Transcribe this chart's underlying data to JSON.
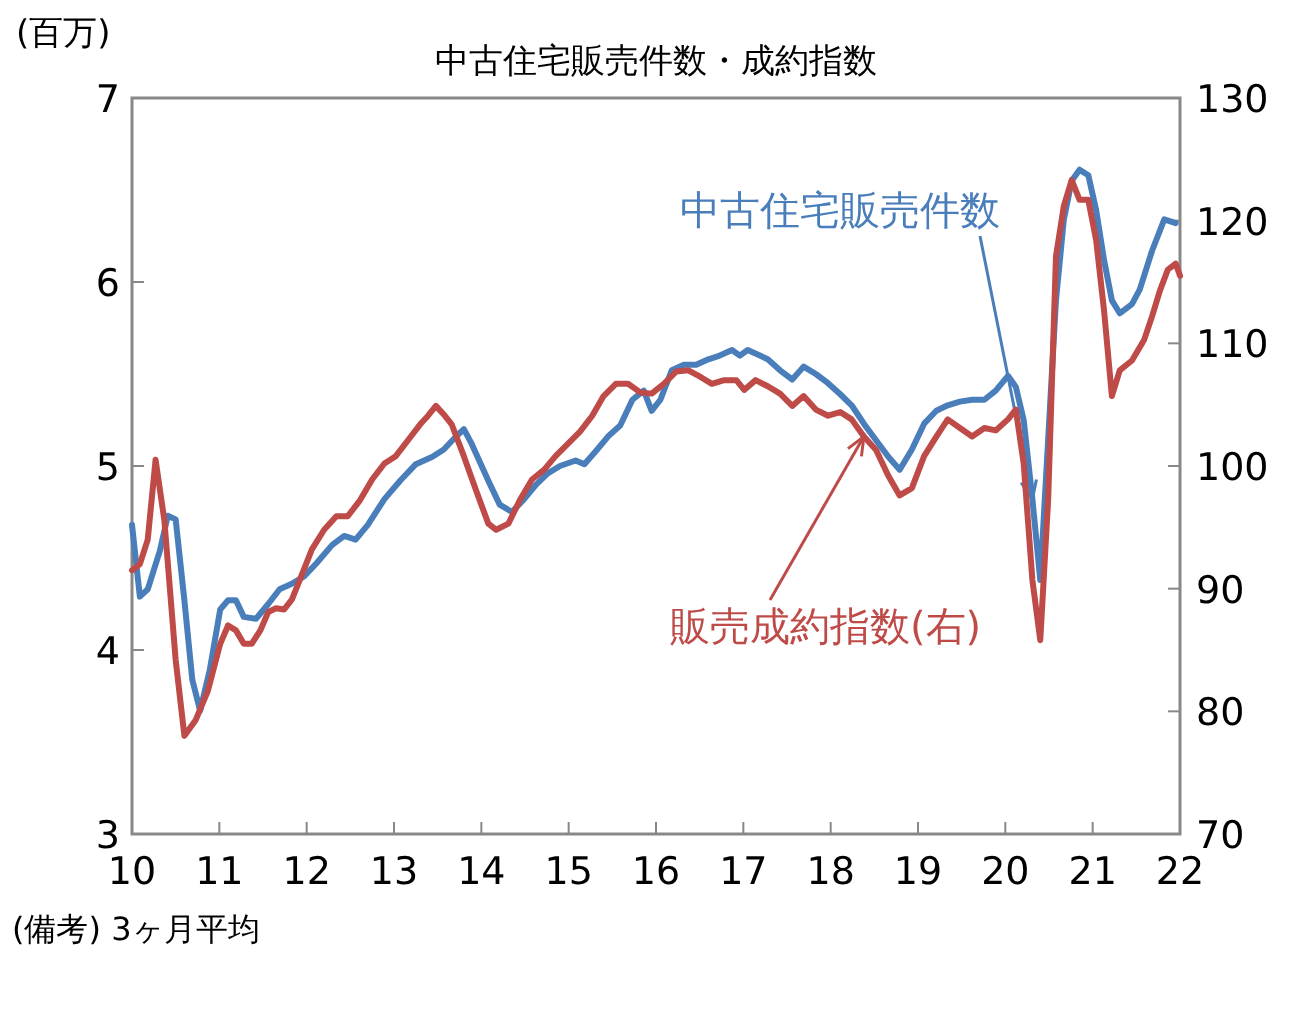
{
  "chart_data": {
    "type": "line",
    "title": "中古住宅販売件数・成約指数",
    "ylabel": "(百万)",
    "annotations": [
      "(備考) 3ヶ月平均"
    ],
    "xlim": [
      10,
      22
    ],
    "xticks": [
      10,
      11,
      12,
      13,
      14,
      15,
      16,
      17,
      18,
      19,
      20,
      21,
      22
    ],
    "ylim": [
      3,
      7
    ],
    "yticks": [
      3,
      4,
      5,
      6,
      7
    ],
    "y2lim": [
      70,
      130
    ],
    "y2ticks": [
      70,
      80,
      90,
      100,
      110,
      120,
      130
    ],
    "grid": false,
    "legend": false,
    "series": [
      {
        "name": "中古住宅販売件数",
        "color": "#4a7ebb",
        "x": [
          10.0,
          10.09,
          10.18,
          10.32,
          10.41,
          10.5,
          10.6,
          10.69,
          10.78,
          10.89,
          11.01,
          11.1,
          11.19,
          11.28,
          11.42,
          11.56,
          11.69,
          11.83,
          11.97,
          12.11,
          12.29,
          12.43,
          12.56,
          12.7,
          12.89,
          13.07,
          13.25,
          13.44,
          13.57,
          13.71,
          13.8,
          13.89,
          14.08,
          14.21,
          14.35,
          14.49,
          14.63,
          14.76,
          14.9,
          15.08,
          15.18,
          15.31,
          15.45,
          15.59,
          15.73,
          15.86,
          15.95,
          16.05,
          16.18,
          16.32,
          16.46,
          16.6,
          16.73,
          16.87,
          16.96,
          17.05,
          17.19,
          17.28,
          17.42,
          17.56,
          17.69,
          17.83,
          17.97,
          18.11,
          18.24,
          18.38,
          18.52,
          18.66,
          18.79,
          18.93,
          19.07,
          19.21,
          19.34,
          19.48,
          19.62,
          19.76,
          19.89,
          20.03,
          20.12,
          20.21,
          20.31,
          20.4,
          20.49,
          20.58,
          20.67,
          20.76,
          20.85,
          20.95,
          21.04,
          21.13,
          21.22,
          21.31,
          21.45,
          21.54,
          21.68,
          21.82,
          21.95
        ],
        "values": [
          4.68,
          4.29,
          4.33,
          4.54,
          4.73,
          4.71,
          4.27,
          3.84,
          3.67,
          3.89,
          4.22,
          4.27,
          4.27,
          4.18,
          4.17,
          4.25,
          4.33,
          4.36,
          4.4,
          4.47,
          4.57,
          4.62,
          4.6,
          4.68,
          4.82,
          4.92,
          5.01,
          5.05,
          5.09,
          5.16,
          5.2,
          5.12,
          4.92,
          4.79,
          4.75,
          4.82,
          4.9,
          4.96,
          5.0,
          5.03,
          5.01,
          5.08,
          5.16,
          5.22,
          5.36,
          5.41,
          5.3,
          5.36,
          5.52,
          5.55,
          5.55,
          5.58,
          5.6,
          5.63,
          5.6,
          5.63,
          5.6,
          5.58,
          5.52,
          5.47,
          5.54,
          5.5,
          5.45,
          5.39,
          5.33,
          5.23,
          5.14,
          5.05,
          4.98,
          5.09,
          5.23,
          5.3,
          5.33,
          5.35,
          5.36,
          5.36,
          5.41,
          5.49,
          5.43,
          5.25,
          4.82,
          4.38,
          5.14,
          5.9,
          6.34,
          6.55,
          6.61,
          6.58,
          6.39,
          6.12,
          5.9,
          5.83,
          5.88,
          5.96,
          6.17,
          6.34,
          6.32
        ]
      },
      {
        "name": "販売成約指数(右)",
        "color": "#be4b48",
        "axis": "y2",
        "x": [
          10.0,
          10.09,
          10.18,
          10.27,
          10.37,
          10.5,
          10.6,
          10.73,
          10.87,
          11.01,
          11.1,
          11.19,
          11.28,
          11.37,
          11.47,
          11.56,
          11.65,
          11.74,
          11.83,
          11.92,
          12.06,
          12.2,
          12.34,
          12.47,
          12.61,
          12.75,
          12.89,
          13.02,
          13.16,
          13.3,
          13.39,
          13.48,
          13.57,
          13.66,
          13.8,
          13.94,
          14.08,
          14.17,
          14.31,
          14.44,
          14.58,
          14.72,
          14.85,
          14.99,
          15.13,
          15.27,
          15.4,
          15.54,
          15.68,
          15.82,
          15.95,
          16.09,
          16.23,
          16.37,
          16.5,
          16.64,
          16.78,
          16.92,
          17.01,
          17.14,
          17.28,
          17.42,
          17.56,
          17.69,
          17.83,
          17.97,
          18.11,
          18.24,
          18.38,
          18.52,
          18.66,
          18.79,
          18.93,
          19.07,
          19.21,
          19.34,
          19.48,
          19.62,
          19.76,
          19.89,
          20.03,
          20.12,
          20.21,
          20.31,
          20.4,
          20.49,
          20.58,
          20.67,
          20.76,
          20.85,
          20.95,
          21.04,
          21.13,
          21.22,
          21.31,
          21.45,
          21.59,
          21.68,
          21.77,
          21.86,
          21.95,
          22.0
        ],
        "values": [
          91.5,
          92.0,
          94.0,
          100.5,
          95.6,
          84.2,
          78.0,
          79.3,
          81.7,
          85.5,
          87.0,
          86.6,
          85.5,
          85.5,
          86.6,
          88.1,
          88.4,
          88.3,
          89.1,
          90.7,
          93.2,
          94.8,
          95.9,
          95.9,
          97.2,
          98.9,
          100.2,
          100.8,
          102.1,
          103.4,
          104.1,
          104.9,
          104.2,
          103.4,
          100.8,
          98.0,
          95.3,
          94.8,
          95.3,
          97.2,
          98.9,
          99.7,
          100.8,
          101.8,
          102.8,
          104.1,
          105.7,
          106.7,
          106.7,
          106.0,
          105.9,
          106.7,
          107.7,
          107.8,
          107.3,
          106.7,
          107.0,
          107.0,
          106.2,
          107.0,
          106.5,
          105.9,
          104.9,
          105.7,
          104.6,
          104.1,
          104.4,
          103.8,
          102.4,
          101.3,
          99.2,
          97.6,
          98.2,
          100.8,
          102.4,
          103.8,
          103.1,
          102.4,
          103.1,
          102.9,
          103.8,
          104.6,
          100.2,
          90.7,
          85.8,
          97.2,
          117.1,
          121.2,
          123.3,
          121.7,
          121.7,
          118.4,
          112.7,
          105.7,
          107.8,
          108.6,
          110.3,
          112.2,
          114.3,
          116.0,
          116.5,
          115.5
        ]
      }
    ]
  }
}
